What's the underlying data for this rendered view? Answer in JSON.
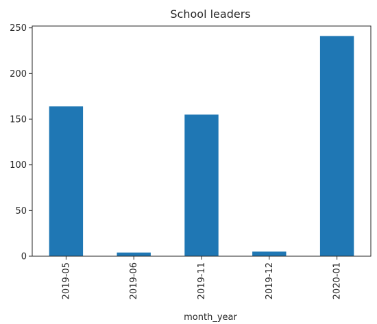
{
  "chart_data": {
    "type": "bar",
    "title": "School leaders",
    "xlabel": "month_year",
    "ylabel": "",
    "categories": [
      "2019-05",
      "2019-06",
      "2019-11",
      "2019-12",
      "2020-01"
    ],
    "values": [
      164,
      4,
      155,
      5,
      241
    ],
    "ylim": [
      0,
      252
    ],
    "yticks": [
      0,
      50,
      100,
      150,
      200,
      250
    ],
    "grid": false,
    "legend": "none",
    "bar_color": "#1f77b4"
  }
}
